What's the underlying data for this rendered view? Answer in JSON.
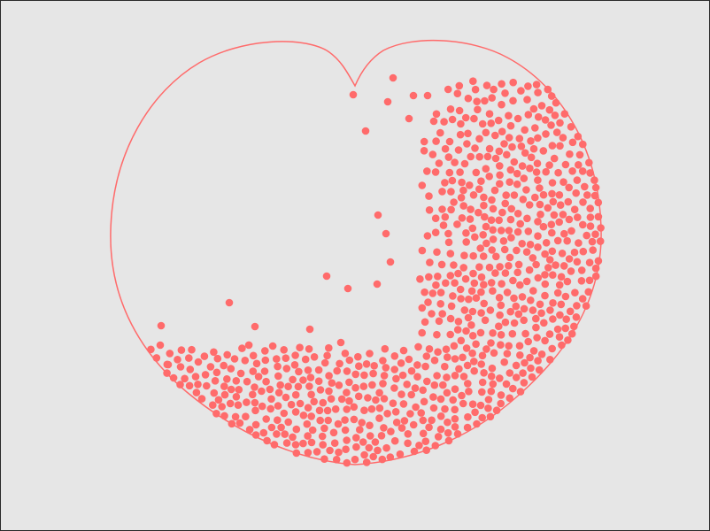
{
  "scene": {
    "background_color": "#e6e6e6",
    "border_color": "#2a2a2a",
    "heart_outline_color": "#ff6b6b",
    "particle_color": "#ff6b6b",
    "particle_count": 1400
  }
}
